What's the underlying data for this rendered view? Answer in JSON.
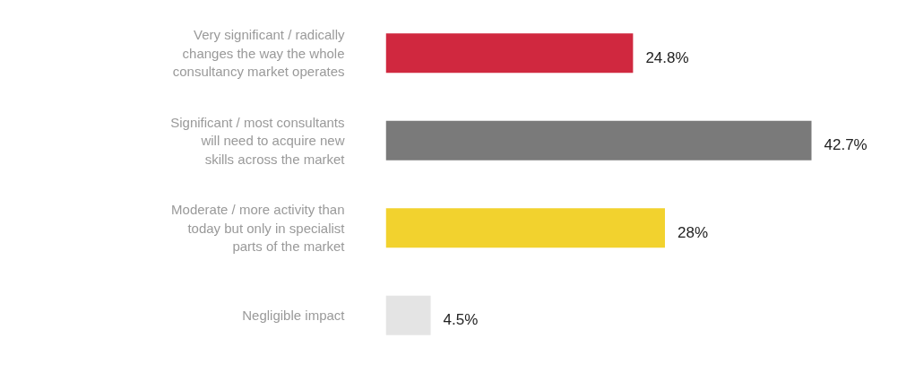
{
  "chart_data": {
    "type": "bar",
    "orientation": "horizontal",
    "value_labels": [
      "24.8%",
      "42.7%",
      "28%",
      "4.5%"
    ],
    "categories": [
      "Very significant / radically changes the way the whole consultancy market operates",
      "Significant / most consultants will need to acquire new skills across the market",
      "Moderate / more activity than today but only in specialist parts of the market",
      "Negligible impact"
    ],
    "values": [
      24.8,
      42.7,
      28,
      4.5
    ],
    "colors": [
      "#d0283f",
      "#7a7a7a",
      "#f2d22e",
      "#e4e4e4"
    ]
  }
}
